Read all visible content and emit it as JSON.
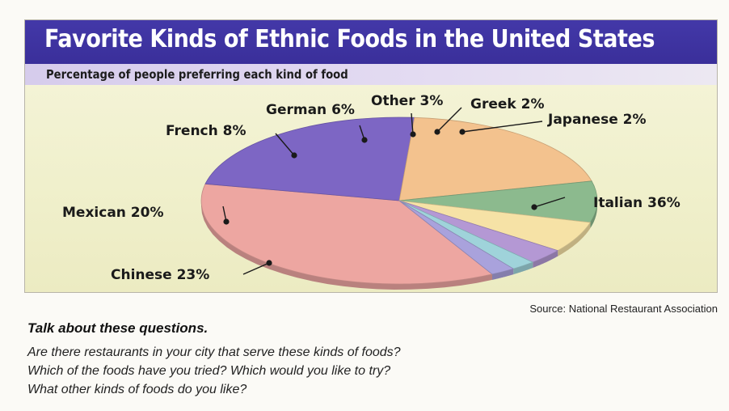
{
  "chart_data": {
    "type": "pie",
    "title": "Favorite Kinds of Ethnic Foods in the United States",
    "subtitle": "Percentage of people preferring each kind of food",
    "slices": [
      {
        "name": "Italian",
        "value": 36,
        "label": "Italian 36%",
        "color": "#eda6a1"
      },
      {
        "name": "Chinese",
        "value": 23,
        "label": "Chinese 23%",
        "color": "#7d66c4"
      },
      {
        "name": "Mexican",
        "value": 20,
        "label": "Mexican 20%",
        "color": "#f3c28e"
      },
      {
        "name": "French",
        "value": 8,
        "label": "French 8%",
        "color": "#8cba8e"
      },
      {
        "name": "German",
        "value": 6,
        "label": "German 6%",
        "color": "#f6e2a6"
      },
      {
        "name": "Other",
        "value": 3,
        "label": "Other 3%",
        "color": "#b498d4"
      },
      {
        "name": "Greek",
        "value": 2,
        "label": "Greek 2%",
        "color": "#9fd3da"
      },
      {
        "name": "Japanese",
        "value": 2,
        "label": "Japanese 2%",
        "color": "#a9a2dc"
      }
    ]
  },
  "source": "Source: National Restaurant Association",
  "discussion": {
    "heading": "Talk about these questions.",
    "questions": [
      "Are there restaurants in your city that serve these kinds of foods?",
      "Which of the foods have you tried? Which would you like to try?",
      "What other kinds of foods do you like?"
    ]
  },
  "colors": {
    "title_bar": "#3e33a3",
    "subtitle_bar": "#ddd4ef",
    "chart_background": "#f2f1d0"
  }
}
